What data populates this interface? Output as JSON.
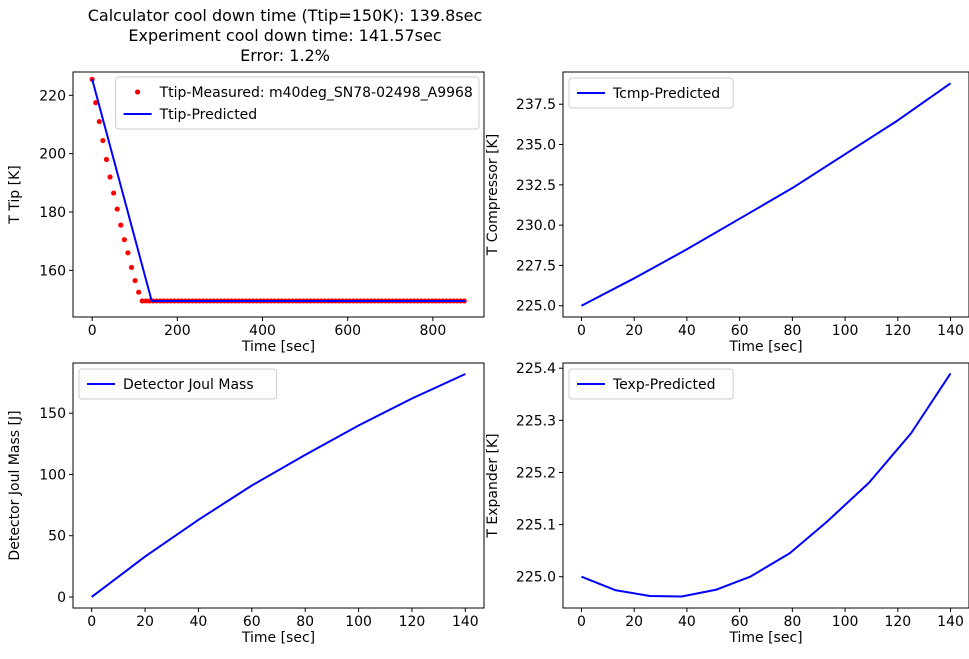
{
  "suptitle": {
    "line1": "Calculator cool down time (Ttip=150K): 139.8sec",
    "line2": "Experiment cool down time: 141.57sec",
    "line3": "Error: 1.2%"
  },
  "colors": {
    "predicted": "#0000ff",
    "measured": "#ff0000",
    "axis": "#000000",
    "background": "#ffffff"
  },
  "chart_data": [
    {
      "type": "line",
      "panel": "top-left",
      "xlabel": "Time [sec]",
      "ylabel": "T Tip [K]",
      "xlim": [
        -45,
        920
      ],
      "ylim": [
        144,
        228
      ],
      "xticks": [
        0,
        200,
        400,
        600,
        800
      ],
      "yticks": [
        160,
        180,
        200,
        220
      ],
      "legend_position": "top-right",
      "series": [
        {
          "name": "Ttip-Measured: m40deg_SN78-02498_A9968",
          "style": "scatter",
          "color": "#ff0000",
          "x": [
            0,
            8.4,
            16.8,
            25.2,
            33.6,
            42,
            50.4,
            58.8,
            67.2,
            75.6,
            84,
            92.4,
            100.8,
            109.2,
            117.6,
            126,
            134.4,
            142.8,
            151.2,
            159.6,
            168,
            176.4,
            184.8,
            193.2,
            201.6,
            210,
            218.4,
            226.8,
            235.2,
            243.6,
            252,
            260.4,
            268.8,
            277.2,
            285.6,
            294,
            302.4,
            310.8,
            319.2,
            327.6,
            336,
            344.4,
            352.8,
            361.2,
            369.6,
            378,
            386.4,
            394.8,
            403.2,
            411.6,
            420,
            428.4,
            436.8,
            445.2,
            453.6,
            462,
            470.4,
            478.8,
            487.2,
            495.6,
            504,
            512.4,
            520.8,
            529.2,
            537.6,
            546,
            554.4,
            562.8,
            571.2,
            579.6,
            588,
            596.4,
            604.8,
            613.2,
            621.6,
            630,
            638.4,
            646.8,
            655.2,
            663.6,
            672,
            680.4,
            688.8,
            697.2,
            705.6,
            714,
            722.4,
            730.8,
            739.2,
            747.6,
            756,
            764.4,
            772.8,
            781.2,
            789.6,
            798,
            806.4,
            814.8,
            823.2,
            831.6,
            840,
            848.4,
            856.8,
            865.2,
            873.6
          ],
          "y": [
            225.5,
            217.5,
            211.0,
            204.5,
            198.0,
            192.0,
            186.5,
            181.0,
            175.5,
            170.5,
            166.0,
            161.0,
            156.5,
            152.5,
            149.5,
            149.5,
            149.5,
            149.5,
            149.5,
            149.5,
            149.5,
            149.5,
            149.5,
            149.5,
            149.5,
            149.5,
            149.5,
            149.5,
            149.5,
            149.5,
            149.5,
            149.5,
            149.5,
            149.5,
            149.5,
            149.5,
            149.5,
            149.5,
            149.5,
            149.5,
            149.5,
            149.5,
            149.5,
            149.5,
            149.5,
            149.5,
            149.5,
            149.5,
            149.5,
            149.5,
            149.5,
            149.5,
            149.5,
            149.5,
            149.5,
            149.5,
            149.5,
            149.5,
            149.5,
            149.5,
            149.5,
            149.5,
            149.5,
            149.5,
            149.5,
            149.5,
            149.5,
            149.5,
            149.5,
            149.5,
            149.5,
            149.5,
            149.5,
            149.5,
            149.5,
            149.5,
            149.5,
            149.5,
            149.5,
            149.5,
            149.5,
            149.5,
            149.5,
            149.5,
            149.5,
            149.5,
            149.5,
            149.5,
            149.5,
            149.5,
            149.5,
            149.5,
            149.5,
            149.5,
            149.5,
            149.5,
            149.5,
            149.5,
            149.5,
            149.5,
            149.5,
            149.5,
            149.5,
            149.5,
            149.5
          ]
        },
        {
          "name": "Ttip-Predicted",
          "style": "line",
          "color": "#0000ff",
          "x": [
            0,
            139.8,
            875
          ],
          "y": [
            225.5,
            149.5,
            149.5
          ]
        }
      ]
    },
    {
      "type": "line",
      "panel": "top-right",
      "xlabel": "Time [sec]",
      "ylabel": "T Compressor [K]",
      "xlim": [
        -7,
        147
      ],
      "ylim": [
        224.3,
        239.5
      ],
      "xticks": [
        0,
        20,
        40,
        60,
        80,
        100,
        120,
        140
      ],
      "yticks": [
        225.0,
        227.5,
        230.0,
        232.5,
        235.0,
        237.5
      ],
      "ytick_labels": [
        "225.0",
        "227.5",
        "230.0",
        "232.5",
        "235.0",
        "237.5"
      ],
      "legend_position": "top-left",
      "series": [
        {
          "name": "Tcmp-Predicted",
          "color": "#0000ff",
          "x": [
            0,
            20,
            40,
            60,
            80,
            100,
            120,
            140
          ],
          "y": [
            225.0,
            226.7,
            228.5,
            230.4,
            232.3,
            234.4,
            236.5,
            238.8
          ]
        }
      ]
    },
    {
      "type": "line",
      "panel": "bottom-left",
      "xlabel": "Time [sec]",
      "ylabel": "Detector Joul Mass [J]",
      "xlim": [
        -7,
        147
      ],
      "ylim": [
        -9,
        191
      ],
      "xticks": [
        0,
        20,
        40,
        60,
        80,
        100,
        120,
        140
      ],
      "yticks": [
        0,
        50,
        100,
        150
      ],
      "legend_position": "top-left",
      "series": [
        {
          "name": "Detector Joul Mass",
          "color": "#0000ff",
          "x": [
            0,
            20,
            40,
            60,
            80,
            100,
            120,
            140
          ],
          "y": [
            0,
            33,
            63,
            91,
            116,
            140,
            162,
            182
          ]
        }
      ]
    },
    {
      "type": "line",
      "panel": "bottom-right",
      "xlabel": "Time [sec]",
      "ylabel": "T Expander [K]",
      "xlim": [
        -7,
        147
      ],
      "ylim": [
        224.94,
        225.41
      ],
      "xticks": [
        0,
        20,
        40,
        60,
        80,
        100,
        120,
        140
      ],
      "yticks": [
        225.0,
        225.1,
        225.2,
        225.3,
        225.4
      ],
      "ytick_labels": [
        "225.0",
        "225.1",
        "225.2",
        "225.3",
        "225.4"
      ],
      "legend_position": "top-left",
      "series": [
        {
          "name": "Texp-Predicted",
          "color": "#0000ff",
          "x": [
            0,
            13,
            26,
            38,
            51,
            64,
            79,
            93,
            109,
            125,
            140
          ],
          "y": [
            225.0,
            224.974,
            224.963,
            224.962,
            224.975,
            225.0,
            225.045,
            225.105,
            225.18,
            225.275,
            225.39
          ]
        }
      ]
    }
  ]
}
